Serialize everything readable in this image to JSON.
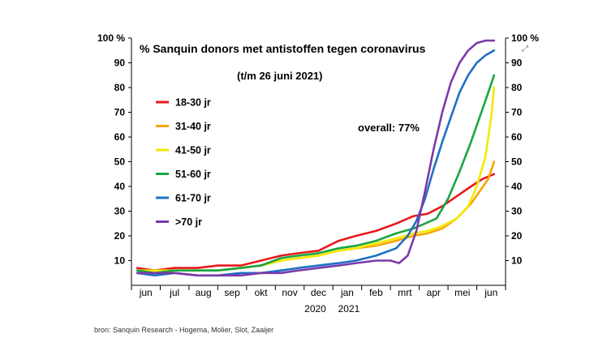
{
  "chart_data": {
    "type": "line",
    "title": "% Sanquin donors met antistoffen tegen coronavirus",
    "subtitle": "(t/m 26 juni 2021)",
    "annotation": "overall: 77%",
    "source": "bron: Sanquin Research - Hogema, Molier, Slot, Zaaijer",
    "ylim": [
      0,
      100
    ],
    "y_ticks": [
      "10",
      "20",
      "30",
      "40",
      "50",
      "60",
      "70",
      "80",
      "90",
      "100 %"
    ],
    "y_ticks_right": [
      "10",
      "20",
      "30",
      "40",
      "50",
      "60",
      "70",
      "80",
      "90",
      "100 %"
    ],
    "x_months": [
      "jun",
      "jul",
      "aug",
      "sep",
      "okt",
      "nov",
      "dec",
      "jan",
      "feb",
      "mrt",
      "apr",
      "mei",
      "jun"
    ],
    "x_years": [
      "2020",
      "2021"
    ],
    "x_range": [
      0,
      13
    ],
    "legend_placement": "top-left",
    "grid": false,
    "series": [
      {
        "name": "18-30 jr",
        "color": "#e8191c",
        "x": [
          0.2,
          0.8,
          1.5,
          2.3,
          3.0,
          3.8,
          4.5,
          5.2,
          5.8,
          6.5,
          7.2,
          7.8,
          8.5,
          9.2,
          9.8,
          10.3,
          10.8,
          11.3,
          11.8,
          12.2,
          12.6
        ],
        "y": [
          7,
          6,
          7,
          7,
          8,
          8,
          10,
          12,
          13,
          14,
          18,
          20,
          22,
          25,
          28,
          29,
          32,
          36,
          40,
          43,
          45
        ]
      },
      {
        "name": "31-40 jr",
        "color": "#f7a600",
        "x": [
          0.2,
          0.8,
          1.5,
          2.3,
          3.0,
          3.8,
          4.5,
          5.2,
          5.8,
          6.5,
          7.2,
          7.8,
          8.5,
          9.2,
          9.8,
          10.3,
          10.8,
          11.3,
          11.8,
          12.1,
          12.4,
          12.6
        ],
        "y": [
          5,
          5,
          6,
          6,
          6,
          7,
          8,
          10,
          11,
          12,
          14,
          15,
          16,
          18,
          20,
          21,
          23,
          27,
          33,
          38,
          43,
          50
        ]
      },
      {
        "name": "41-50 jr",
        "color": "#f2ea00",
        "x": [
          0.2,
          0.8,
          1.5,
          2.3,
          3.0,
          3.8,
          4.5,
          5.2,
          5.8,
          6.5,
          7.2,
          7.8,
          8.5,
          9.2,
          9.8,
          10.3,
          10.8,
          11.3,
          11.7,
          12.0,
          12.3,
          12.5,
          12.6
        ],
        "y": [
          6,
          6,
          6,
          6,
          6,
          7,
          8,
          10,
          11,
          12,
          14,
          15,
          17,
          19,
          21,
          22,
          24,
          27,
          32,
          40,
          52,
          68,
          80
        ]
      },
      {
        "name": "51-60 jr",
        "color": "#1aa543",
        "x": [
          0.2,
          0.8,
          1.5,
          2.3,
          3.0,
          3.8,
          4.5,
          5.2,
          5.8,
          6.5,
          7.2,
          7.8,
          8.5,
          9.2,
          9.8,
          10.2,
          10.6,
          11.0,
          11.4,
          11.8,
          12.1,
          12.4,
          12.6
        ],
        "y": [
          6,
          5,
          6,
          6,
          6,
          7,
          8,
          11,
          12,
          13,
          15,
          16,
          18,
          21,
          23,
          25,
          27,
          35,
          46,
          58,
          68,
          78,
          85
        ]
      },
      {
        "name": "61-70 jr",
        "color": "#1e6fc5",
        "x": [
          0.2,
          0.8,
          1.5,
          2.3,
          3.0,
          3.8,
          4.5,
          5.2,
          5.8,
          6.5,
          7.2,
          7.8,
          8.5,
          9.2,
          9.6,
          9.9,
          10.2,
          10.5,
          10.8,
          11.1,
          11.4,
          11.7,
          12.0,
          12.3,
          12.6
        ],
        "y": [
          5,
          4,
          5,
          4,
          4,
          5,
          5,
          6,
          7,
          8,
          9,
          10,
          12,
          15,
          20,
          26,
          35,
          47,
          58,
          68,
          78,
          85,
          90,
          93,
          95
        ]
      },
      {
        "name": ">70 jr",
        "color": "#7c3aa8",
        "x": [
          0.2,
          0.8,
          1.5,
          2.3,
          3.0,
          3.8,
          4.5,
          5.2,
          5.8,
          6.5,
          7.2,
          7.8,
          8.5,
          9.0,
          9.3,
          9.6,
          9.9,
          10.2,
          10.5,
          10.8,
          11.1,
          11.4,
          11.7,
          12.0,
          12.3,
          12.6
        ],
        "y": [
          5,
          5,
          5,
          4,
          4,
          4,
          5,
          5,
          6,
          7,
          8,
          9,
          10,
          10,
          9,
          12,
          22,
          38,
          55,
          70,
          82,
          90,
          95,
          98,
          99,
          99
        ]
      }
    ]
  }
}
